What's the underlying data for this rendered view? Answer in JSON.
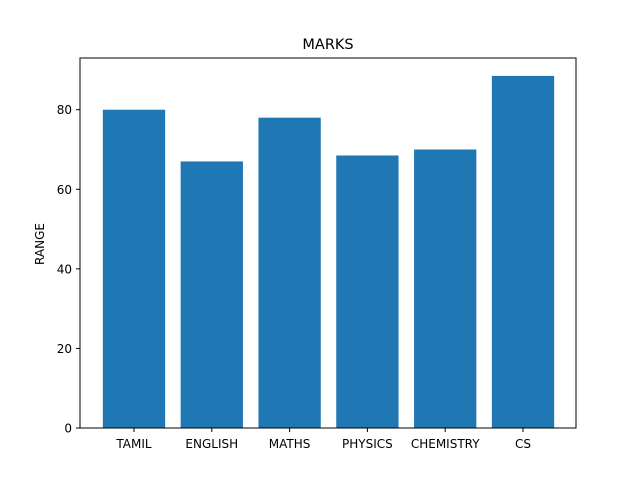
{
  "chart_data": {
    "type": "bar",
    "title": "MARKS",
    "xlabel": "",
    "ylabel": "RANGE",
    "categories": [
      "TAMIL",
      "ENGLISH",
      "MATHS",
      "PHYSICS",
      "CHEMISTRY",
      "CS"
    ],
    "values": [
      80,
      67,
      78,
      68.5,
      70,
      88.5
    ],
    "ylim": [
      0,
      93
    ],
    "yticks": [
      0,
      20,
      40,
      60,
      80
    ],
    "bar_color": "#1f77b4",
    "grid": false,
    "legend": "none"
  }
}
